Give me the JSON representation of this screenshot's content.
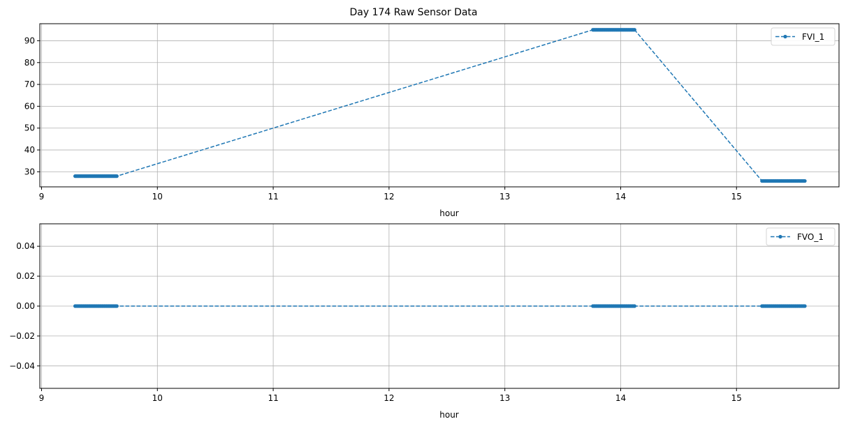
{
  "title": "Day 174 Raw Sensor Data",
  "chart_data": [
    {
      "type": "line",
      "xlabel": "hour",
      "ylabel": "",
      "xlim": [
        8.985,
        15.885
      ],
      "ylim": [
        23.1,
        97.8
      ],
      "xticks": [
        9,
        10,
        11,
        12,
        13,
        14,
        15
      ],
      "yticks": [
        30,
        40,
        50,
        60,
        70,
        80,
        90
      ],
      "grid": true,
      "legend_position": "top-right",
      "series": [
        {
          "name": "FVI_1",
          "color": "#1f77b4",
          "linestyle": "dashed",
          "marker": "dot",
          "segments": [
            {
              "x_start": 9.29,
              "x_end": 9.65,
              "y": 28
            },
            {
              "x_start": 13.76,
              "x_end": 14.12,
              "y": 95
            },
            {
              "x_start": 15.22,
              "x_end": 15.59,
              "y": 25.8
            }
          ]
        }
      ]
    },
    {
      "type": "line",
      "xlabel": "hour",
      "ylabel": "",
      "xlim": [
        8.985,
        15.885
      ],
      "ylim": [
        -0.055,
        0.055
      ],
      "xticks": [
        9,
        10,
        11,
        12,
        13,
        14,
        15
      ],
      "yticks": [
        -0.04,
        -0.02,
        0.0,
        0.02,
        0.04
      ],
      "ytick_labels": [
        "−0.04",
        "−0.02",
        "0.00",
        "0.02",
        "0.04"
      ],
      "grid": true,
      "legend_position": "top-right",
      "series": [
        {
          "name": "FVO_1",
          "color": "#1f77b4",
          "linestyle": "dashed",
          "marker": "dot",
          "segments": [
            {
              "x_start": 9.29,
              "x_end": 9.65,
              "y": 0
            },
            {
              "x_start": 13.76,
              "x_end": 14.12,
              "y": 0
            },
            {
              "x_start": 15.22,
              "x_end": 15.59,
              "y": 0
            }
          ]
        }
      ]
    }
  ]
}
